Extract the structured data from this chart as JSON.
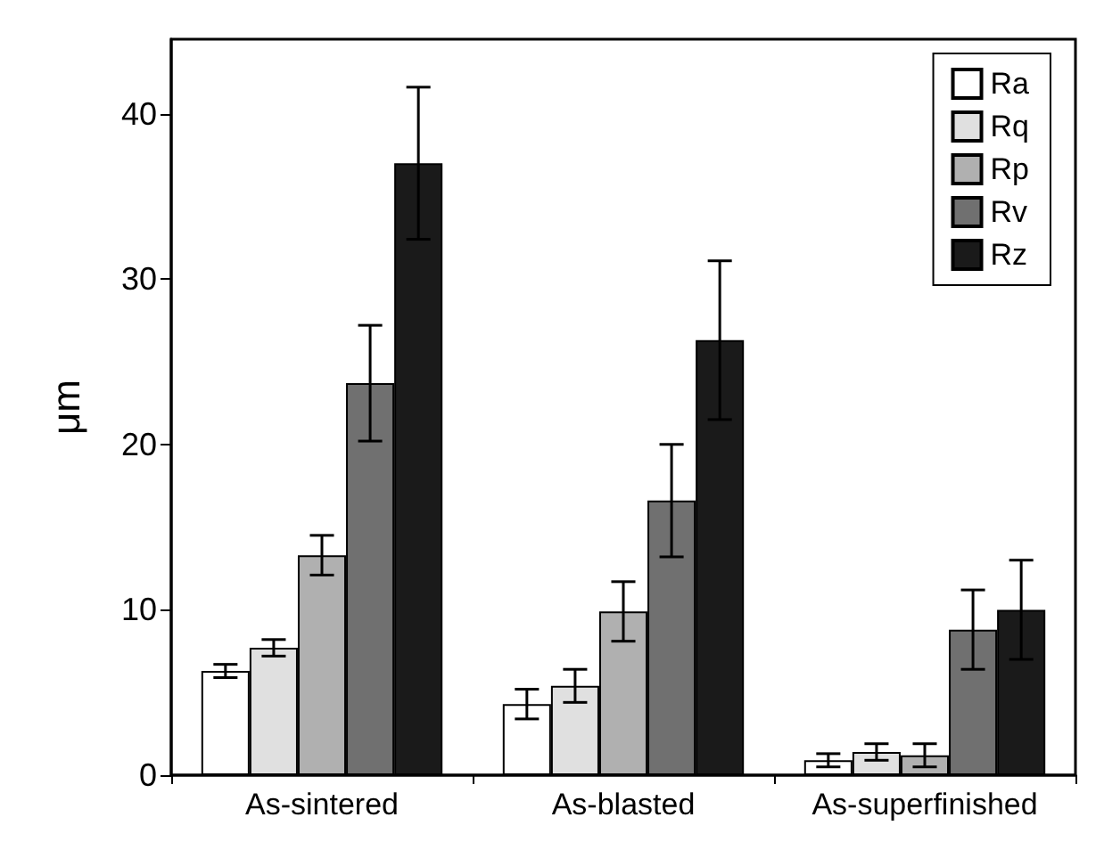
{
  "chart_data": {
    "type": "bar",
    "ylabel": "μm",
    "categories": [
      "As-sintered",
      "As-blasted",
      "As-superfinished"
    ],
    "series": [
      {
        "name": "Ra",
        "color": "#ffffff",
        "values": [
          6.3,
          4.3,
          0.9
        ],
        "errors": [
          0.4,
          0.9,
          0.4
        ]
      },
      {
        "name": "Rq",
        "color": "#e0e0e0",
        "values": [
          7.7,
          5.4,
          1.4
        ],
        "errors": [
          0.5,
          1.0,
          0.5
        ]
      },
      {
        "name": "Rp",
        "color": "#b0b0b0",
        "values": [
          13.3,
          9.9,
          1.2
        ],
        "errors": [
          1.2,
          1.8,
          0.7
        ]
      },
      {
        "name": "Rv",
        "color": "#707070",
        "values": [
          23.7,
          16.6,
          8.8
        ],
        "errors": [
          3.5,
          3.4,
          2.4
        ]
      },
      {
        "name": "Rz",
        "color": "#1a1a1a",
        "values": [
          37,
          26.3,
          10
        ],
        "errors": [
          4.6,
          4.8,
          3
        ]
      }
    ],
    "ylim": [
      0,
      44.5
    ],
    "yticks": [
      0,
      10,
      20,
      30,
      40
    ],
    "grid": false,
    "legend": "top right"
  }
}
